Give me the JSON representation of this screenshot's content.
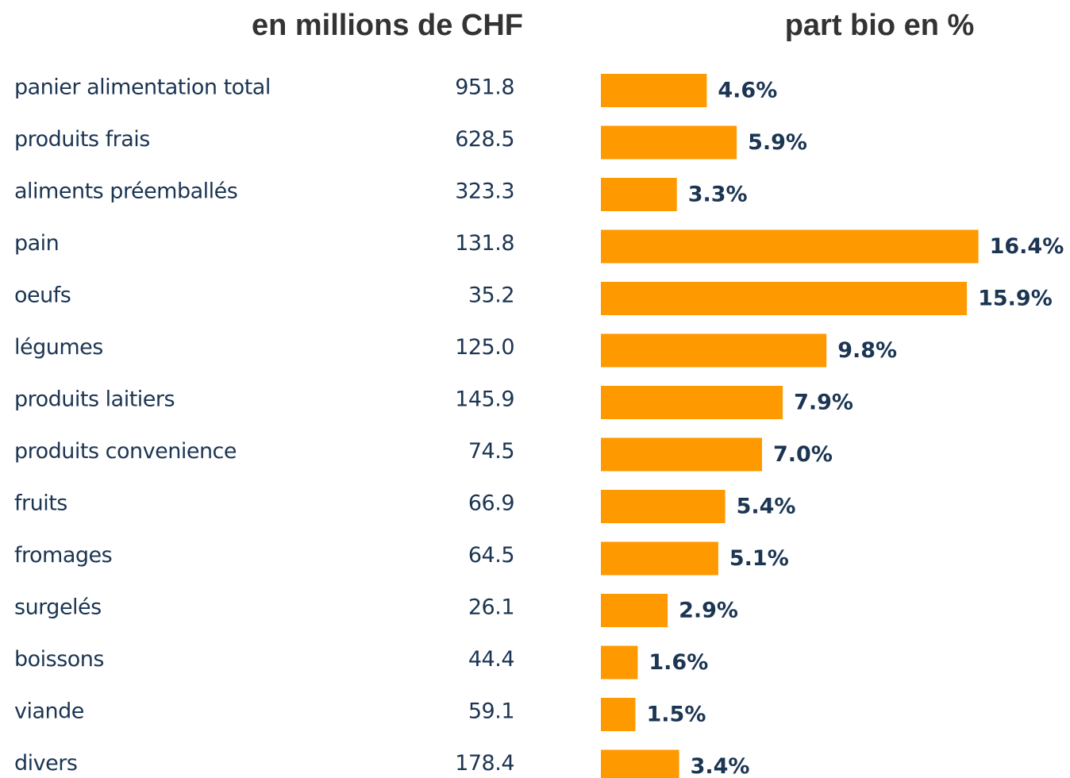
{
  "chart_data": {
    "type": "bar",
    "orientation": "horizontal",
    "amounts_title": "en millions de CHF",
    "title": "part bio en %",
    "categories": [
      "panier alimentation total",
      "produits frais",
      "aliments préemballés",
      "pain",
      "oeufs",
      "légumes",
      "produits laitiers",
      "produits convenience",
      "fruits",
      "fromages",
      "surgelés",
      "boissons",
      "viande",
      "divers"
    ],
    "amounts": [
      951.8,
      628.5,
      323.3,
      131.8,
      35.2,
      125.0,
      145.9,
      74.5,
      66.9,
      64.5,
      26.1,
      44.4,
      59.1,
      178.4
    ],
    "amount_labels": [
      "951.8",
      "628.5",
      "323.3",
      "131.8",
      "35.2",
      "125.0",
      "145.9",
      "74.5",
      "66.9",
      "64.5",
      "26.1",
      "44.4",
      "59.1",
      "178.4"
    ],
    "values": [
      4.6,
      5.9,
      3.3,
      16.4,
      15.9,
      9.8,
      7.9,
      7.0,
      5.4,
      5.1,
      2.9,
      1.6,
      1.5,
      3.4
    ],
    "value_labels": [
      "4.6%",
      "5.9%",
      "3.3%",
      "16.4%",
      "15.9%",
      "9.8%",
      "7.9%",
      "7.0%",
      "5.4%",
      "5.1%",
      "2.9%",
      "1.6%",
      "1.5%",
      "3.4%"
    ],
    "color": "#ff9900"
  }
}
